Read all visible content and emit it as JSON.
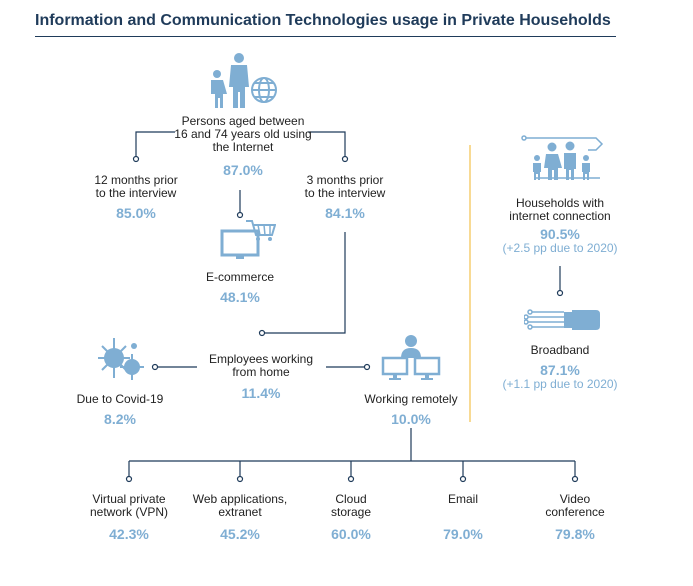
{
  "title": "Information and Communication Technologies usage in Private Households",
  "colors": {
    "title": "#1f3b5a",
    "value": "#7faed3",
    "line": "#1f3b5a",
    "separator": "#f2c14e",
    "icon": "#7faed3"
  },
  "persons": {
    "label": "Persons aged between\n16 and 74 years old using\nthe Internet",
    "value": "87.0%"
  },
  "months12": {
    "label": "12 months prior\nto the interview",
    "value": "85.0%"
  },
  "months3": {
    "label": "3 months prior\nto the interview",
    "value": "84.1%"
  },
  "ecommerce": {
    "label": "E-commerce",
    "value": "48.1%"
  },
  "home": {
    "label": "Employees working\nfrom home",
    "value": "11.4%"
  },
  "covid": {
    "label": "Due to Covid-19",
    "value": "8.2%"
  },
  "remote": {
    "label": "Working remotely",
    "value": "10.0%"
  },
  "households": {
    "label": "Households with\ninternet connection",
    "value": "90.5%",
    "note": "(+2.5 pp due to 2020)"
  },
  "broadband": {
    "label": "Broadband",
    "value": "87.1%",
    "note": "(+1.1 pp due to 2020)"
  },
  "tools": [
    {
      "label": "Virtual private\nnetwork (VPN)",
      "value": "42.3%"
    },
    {
      "label": "Web applications,\nextranet",
      "value": "45.2%"
    },
    {
      "label": "Cloud\nstorage",
      "value": "60.0%"
    },
    {
      "label": "Email",
      "value": "79.0%"
    },
    {
      "label": "Video\nconference",
      "value": "79.8%"
    }
  ]
}
